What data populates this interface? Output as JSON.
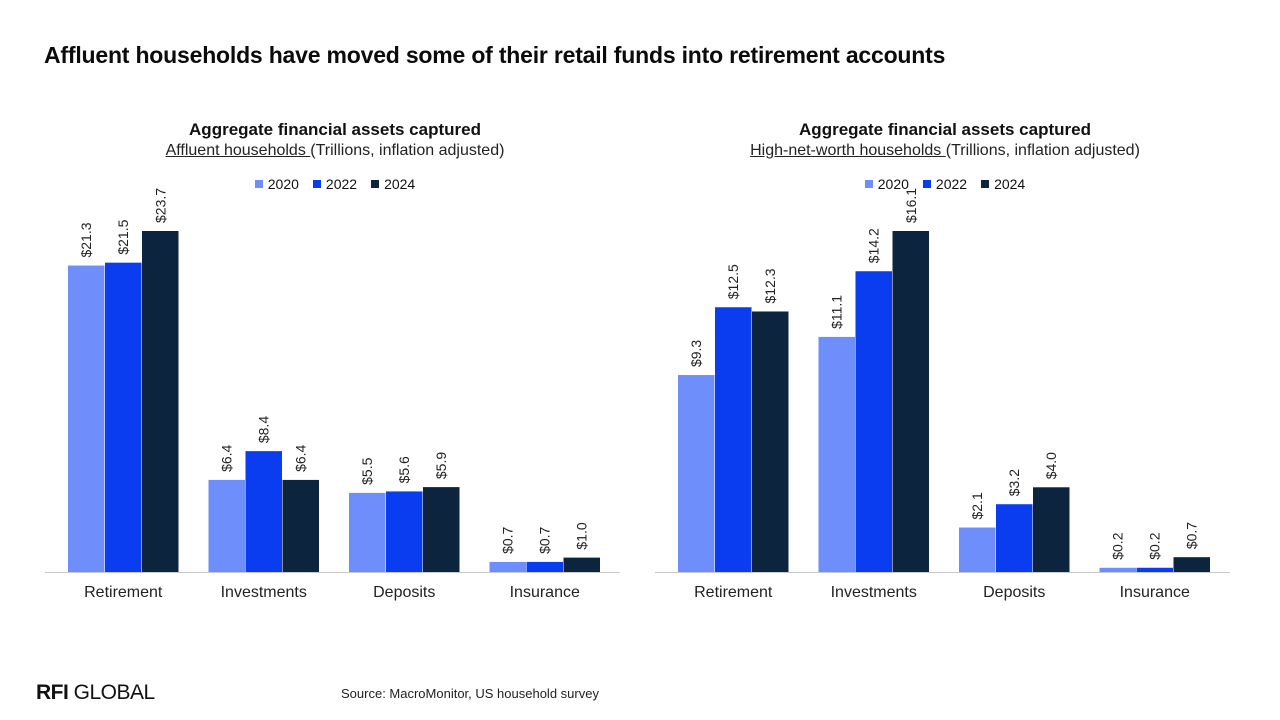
{
  "title": "Affluent households have moved some of their retail funds into retirement accounts",
  "source": "Source: MacroMonitor, US household survey",
  "logo": {
    "bold": "RFI",
    "rest": " GLOBAL"
  },
  "colors": {
    "2020": "#6e8ffb",
    "2022": "#0a3cf0",
    "2024": "#0d243f",
    "axis": "#c8c8c8"
  },
  "chart_data": [
    {
      "type": "bar",
      "title": "Aggregate financial assets captured",
      "subtitle_underlined": "Affluent households ",
      "subtitle_rest": "(Trillions, inflation adjusted)",
      "categories": [
        "Retirement",
        "Investments",
        "Deposits",
        "Insurance"
      ],
      "series": [
        {
          "name": "2020",
          "values": [
            21.3,
            6.4,
            5.5,
            0.7
          ],
          "labels": [
            "$21.3",
            "$6.4",
            "$5.5",
            "$0.7"
          ]
        },
        {
          "name": "2022",
          "values": [
            21.5,
            8.4,
            5.6,
            0.7
          ],
          "labels": [
            "$21.5",
            "$8.4",
            "$5.6",
            "$0.7"
          ]
        },
        {
          "name": "2024",
          "values": [
            23.7,
            6.4,
            5.9,
            1.0
          ],
          "labels": [
            "$23.7",
            "$6.4",
            "$5.9",
            "$1.0"
          ]
        }
      ],
      "ylim": [
        0,
        23.7
      ],
      "legend_position": "top-center",
      "grid": false
    },
    {
      "type": "bar",
      "title": "Aggregate financial assets captured",
      "subtitle_underlined": "High-net-worth households ",
      "subtitle_rest": "(Trillions, inflation adjusted)",
      "categories": [
        "Retirement",
        "Investments",
        "Deposits",
        "Insurance"
      ],
      "series": [
        {
          "name": "2020",
          "values": [
            9.3,
            11.1,
            2.1,
            0.2
          ],
          "labels": [
            "$9.3",
            "$11.1",
            "$2.1",
            "$0.2"
          ]
        },
        {
          "name": "2022",
          "values": [
            12.5,
            14.2,
            3.2,
            0.2
          ],
          "labels": [
            "$12.5",
            "$14.2",
            "$3.2",
            "$0.2"
          ]
        },
        {
          "name": "2024",
          "values": [
            12.3,
            16.1,
            4.0,
            0.7
          ],
          "labels": [
            "$12.3",
            "$16.1",
            "$4.0",
            "$0.7"
          ]
        }
      ],
      "ylim": [
        0,
        16.1
      ],
      "legend_position": "top-center",
      "grid": false
    }
  ]
}
